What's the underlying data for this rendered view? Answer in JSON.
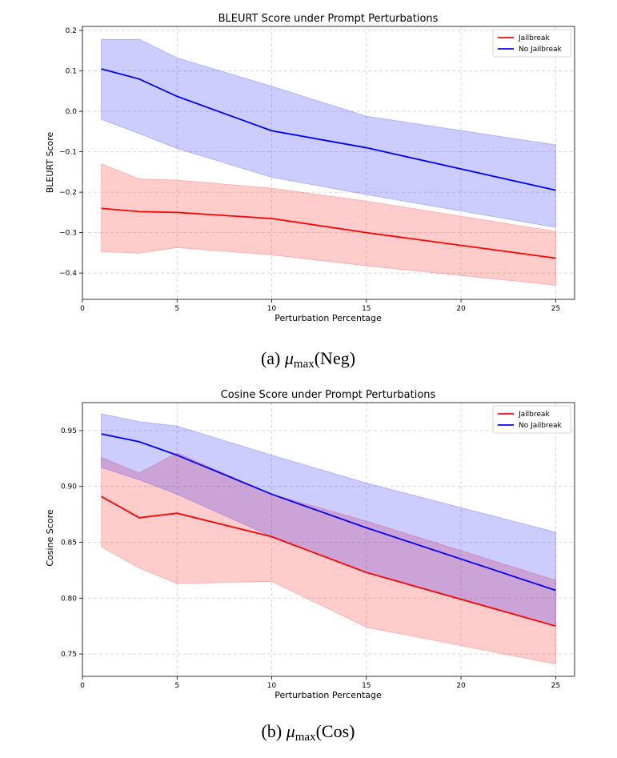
{
  "chart_data": [
    {
      "type": "line",
      "title": "BLEURT Score under Prompt Perturbations",
      "xlabel": "Perturbation Percentage",
      "ylabel": "BLEURT Score",
      "x": [
        1,
        3,
        5,
        10,
        15,
        25
      ],
      "xlim": [
        0,
        26
      ],
      "ylim": [
        -0.465,
        0.21
      ],
      "xticks": [
        0,
        5,
        10,
        15,
        20,
        25
      ],
      "yticks": [
        -0.4,
        -0.3,
        -0.2,
        -0.1,
        0.0,
        0.1,
        0.2
      ],
      "ytick_labels": [
        "−0.4",
        "−0.3",
        "−0.2",
        "−0.1",
        "0.0",
        "0.1",
        "0.2"
      ],
      "grid": true,
      "legend_position": "top-right",
      "series": [
        {
          "name": "Jailbreak",
          "color": "#ff0000",
          "values": [
            -0.24,
            -0.248,
            -0.25,
            -0.265,
            -0.3,
            -0.363
          ],
          "upper": [
            -0.13,
            -0.167,
            -0.17,
            -0.19,
            -0.222,
            -0.297
          ],
          "lower": [
            -0.347,
            -0.351,
            -0.337,
            -0.355,
            -0.382,
            -0.43
          ]
        },
        {
          "name": "No Jailbreak",
          "color": "#0000ff",
          "values": [
            0.105,
            0.08,
            0.037,
            -0.048,
            -0.09,
            -0.195
          ],
          "upper": [
            0.178,
            0.178,
            0.132,
            0.062,
            -0.012,
            -0.083
          ],
          "lower": [
            -0.02,
            -0.055,
            -0.092,
            -0.163,
            -0.206,
            -0.287
          ]
        }
      ],
      "caption": {
        "prefix": "(a) ",
        "mu": "μ",
        "sub": "max",
        "suffix": "(Neg)"
      }
    },
    {
      "type": "line",
      "title": "Cosine Score under Prompt Perturbations",
      "xlabel": "Perturbation Percentage",
      "ylabel": "Cosine Score",
      "x": [
        1,
        3,
        5,
        10,
        15,
        25
      ],
      "xlim": [
        0,
        26
      ],
      "ylim": [
        0.73,
        0.975
      ],
      "xticks": [
        0,
        5,
        10,
        15,
        20,
        25
      ],
      "yticks": [
        0.75,
        0.8,
        0.85,
        0.9,
        0.95
      ],
      "ytick_labels": [
        "0.75",
        "0.80",
        "0.85",
        "0.90",
        "0.95"
      ],
      "grid": true,
      "legend_position": "top-right",
      "series": [
        {
          "name": "Jailbreak",
          "color": "#ff0000",
          "values": [
            0.891,
            0.872,
            0.876,
            0.855,
            0.823,
            0.775
          ],
          "upper": [
            0.926,
            0.912,
            0.93,
            0.893,
            0.869,
            0.816
          ],
          "lower": [
            0.846,
            0.827,
            0.813,
            0.815,
            0.774,
            0.741
          ]
        },
        {
          "name": "No Jailbreak",
          "color": "#0000ff",
          "values": [
            0.947,
            0.94,
            0.928,
            0.893,
            0.863,
            0.807
          ],
          "upper": [
            0.965,
            0.958,
            0.954,
            0.928,
            0.903,
            0.859
          ],
          "lower": [
            0.917,
            0.906,
            0.893,
            0.855,
            0.823,
            0.775
          ]
        }
      ],
      "caption": {
        "prefix": "(b) ",
        "mu": "μ",
        "sub": "max",
        "suffix": "(Cos)"
      }
    }
  ]
}
